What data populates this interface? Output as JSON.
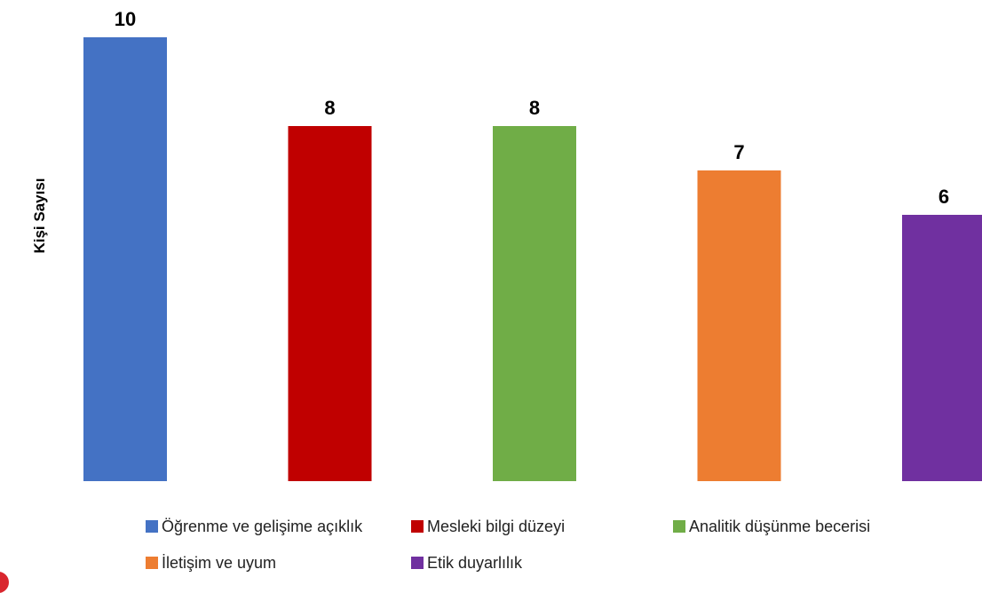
{
  "chart_data": {
    "type": "bar",
    "title": "",
    "xlabel": "",
    "ylabel": "Kişi Sayısı",
    "ylim": [
      0,
      10
    ],
    "grid": false,
    "legend_position": "bottom",
    "categories": [
      "Öğrenme ve gelişime açıklık",
      "Mesleki bilgi düzeyi",
      "Analitik düşünme becerisi",
      "İletişim ve uyum",
      "Etik duyarlılık"
    ],
    "values": [
      10,
      8,
      8,
      7,
      6
    ],
    "data_labels": [
      "10",
      "8",
      "8",
      "7",
      "6"
    ],
    "colors": [
      "#4472c4",
      "#c00000",
      "#70ad47",
      "#ed7d31",
      "#7030a0"
    ]
  }
}
